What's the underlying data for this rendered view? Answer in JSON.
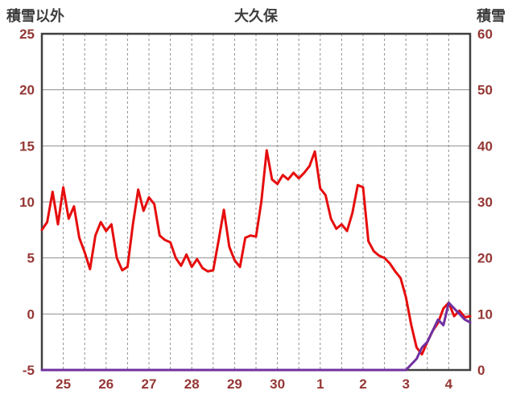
{
  "header": {
    "left_axis_title": "積雪以外",
    "chart_title": "大久保",
    "right_axis_title": "積雪"
  },
  "colors": {
    "temperature_line": "#e60d0d",
    "snow_line": "#7030a0",
    "tick_label": "#953735",
    "grid": "#8f8f8f",
    "border": "#404040",
    "title_text": "#3d3d3d",
    "background": "#ffffff"
  },
  "chart_data": {
    "type": "line",
    "title": "大久保",
    "left_axis": {
      "label": "積雪以外",
      "min": -5,
      "max": 25,
      "tick_step": 5
    },
    "right_axis": {
      "label": "積雪",
      "min": 0,
      "max": 60,
      "tick_step": 10
    },
    "x_axis": {
      "labels": [
        "25",
        "26",
        "27",
        "28",
        "29",
        "30",
        "1",
        "2",
        "3",
        "4"
      ],
      "range_days": [
        0,
        10
      ],
      "gridline_step_days": 0.5
    },
    "grid": "on",
    "legend": "none",
    "series": [
      {
        "name": "積雪以外",
        "axis": "left",
        "color": "#e60d0d",
        "x_start": 0,
        "x_step": 0.125,
        "values": [
          7.5,
          8.2,
          10.9,
          8.0,
          11.3,
          8.5,
          9.6,
          6.8,
          5.5,
          4.0,
          7.0,
          8.2,
          7.4,
          8.0,
          5.0,
          3.9,
          4.2,
          8.0,
          11.1,
          9.2,
          10.4,
          9.8,
          7.0,
          6.6,
          6.4,
          5.0,
          4.3,
          5.3,
          4.2,
          4.9,
          4.1,
          3.8,
          3.9,
          6.5,
          9.3,
          6.0,
          4.8,
          4.2,
          6.8,
          7.0,
          6.9,
          10.0,
          14.6,
          12.0,
          11.6,
          12.4,
          12.0,
          12.6,
          12.1,
          12.6,
          13.2,
          14.5,
          11.2,
          10.6,
          8.5,
          7.6,
          8.0,
          7.4,
          9.0,
          11.5,
          11.3,
          6.5,
          5.6,
          5.2,
          5.0,
          4.5,
          3.8,
          3.2,
          1.5,
          -1.0,
          -3.0,
          -3.6,
          -2.5,
          -1.5,
          -0.8,
          0.5,
          1.0,
          -0.2,
          0.3,
          -0.3,
          -0.2
        ]
      },
      {
        "name": "積雪",
        "axis": "right",
        "color": "#7030a0",
        "x_start": 0,
        "x_step": 0.125,
        "values": [
          0,
          0,
          0,
          0,
          0,
          0,
          0,
          0,
          0,
          0,
          0,
          0,
          0,
          0,
          0,
          0,
          0,
          0,
          0,
          0,
          0,
          0,
          0,
          0,
          0,
          0,
          0,
          0,
          0,
          0,
          0,
          0,
          0,
          0,
          0,
          0,
          0,
          0,
          0,
          0,
          0,
          0,
          0,
          0,
          0,
          0,
          0,
          0,
          0,
          0,
          0,
          0,
          0,
          0,
          0,
          0,
          0,
          0,
          0,
          0,
          0,
          0,
          0,
          0,
          0,
          0,
          0,
          0,
          0,
          1,
          2,
          4,
          5,
          7,
          9,
          8,
          12,
          11,
          10,
          9,
          8.5
        ]
      }
    ]
  }
}
